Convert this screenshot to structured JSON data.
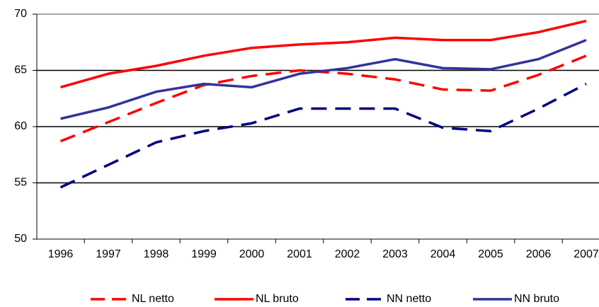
{
  "chart_data": {
    "type": "line",
    "categories": [
      "1996",
      "1997",
      "1998",
      "1999",
      "2000",
      "2001",
      "2002",
      "2003",
      "2004",
      "2005",
      "2006",
      "2007"
    ],
    "series": [
      {
        "name": "NL netto",
        "color": "#ff0000",
        "dashed": true,
        "values": [
          58.7,
          60.4,
          62.1,
          63.7,
          64.5,
          65.0,
          64.7,
          64.2,
          63.3,
          63.2,
          64.6,
          66.3
        ]
      },
      {
        "name": "NL bruto",
        "color": "#ff0000",
        "dashed": false,
        "values": [
          63.5,
          64.7,
          65.4,
          66.3,
          67.0,
          67.3,
          67.5,
          67.9,
          67.7,
          67.7,
          68.4,
          69.4
        ]
      },
      {
        "name": "NN netto",
        "color": "#000080",
        "dashed": true,
        "values": [
          54.6,
          56.6,
          58.6,
          59.6,
          60.3,
          61.6,
          61.6,
          61.6,
          59.9,
          59.6,
          61.6,
          63.8
        ]
      },
      {
        "name": "NN bruto",
        "color": "#333399",
        "dashed": false,
        "values": [
          60.7,
          61.7,
          63.1,
          63.8,
          63.5,
          64.7,
          65.2,
          66.0,
          65.2,
          65.1,
          66.0,
          67.7
        ]
      }
    ],
    "ylim": [
      50,
      70
    ],
    "yticks": [
      50,
      55,
      60,
      65,
      70
    ],
    "grid": true,
    "legend": "bottom"
  }
}
